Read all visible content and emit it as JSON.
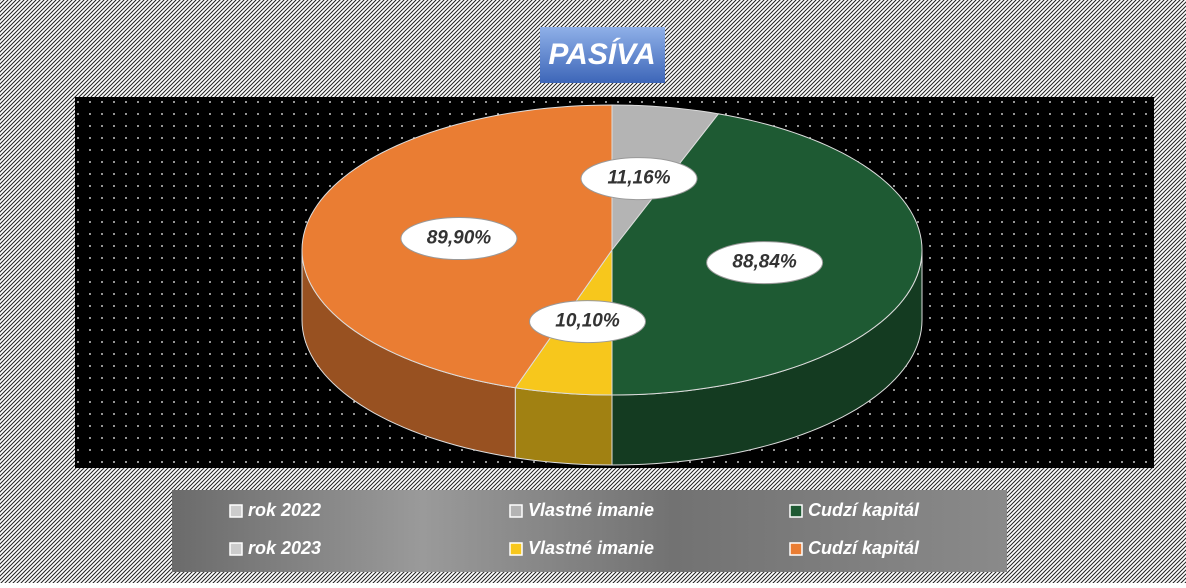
{
  "chart_data": {
    "type": "pie",
    "title": "PASÍVA",
    "categories": [
      "Vlastné imanie",
      "Cudzí kapitál"
    ],
    "series": [
      {
        "name": "rok 2022",
        "colors": [
          "#b4b4b4",
          "#1e5a33"
        ],
        "values": [
          11.16,
          88.84
        ],
        "value_labels": [
          "11,16%",
          "88,84%"
        ]
      },
      {
        "name": "rok 2023",
        "colors": [
          "#f7c71c",
          "#ea7d33"
        ],
        "values": [
          10.1,
          89.9
        ],
        "value_labels": [
          "10,10%",
          "89,90%"
        ]
      }
    ]
  }
}
